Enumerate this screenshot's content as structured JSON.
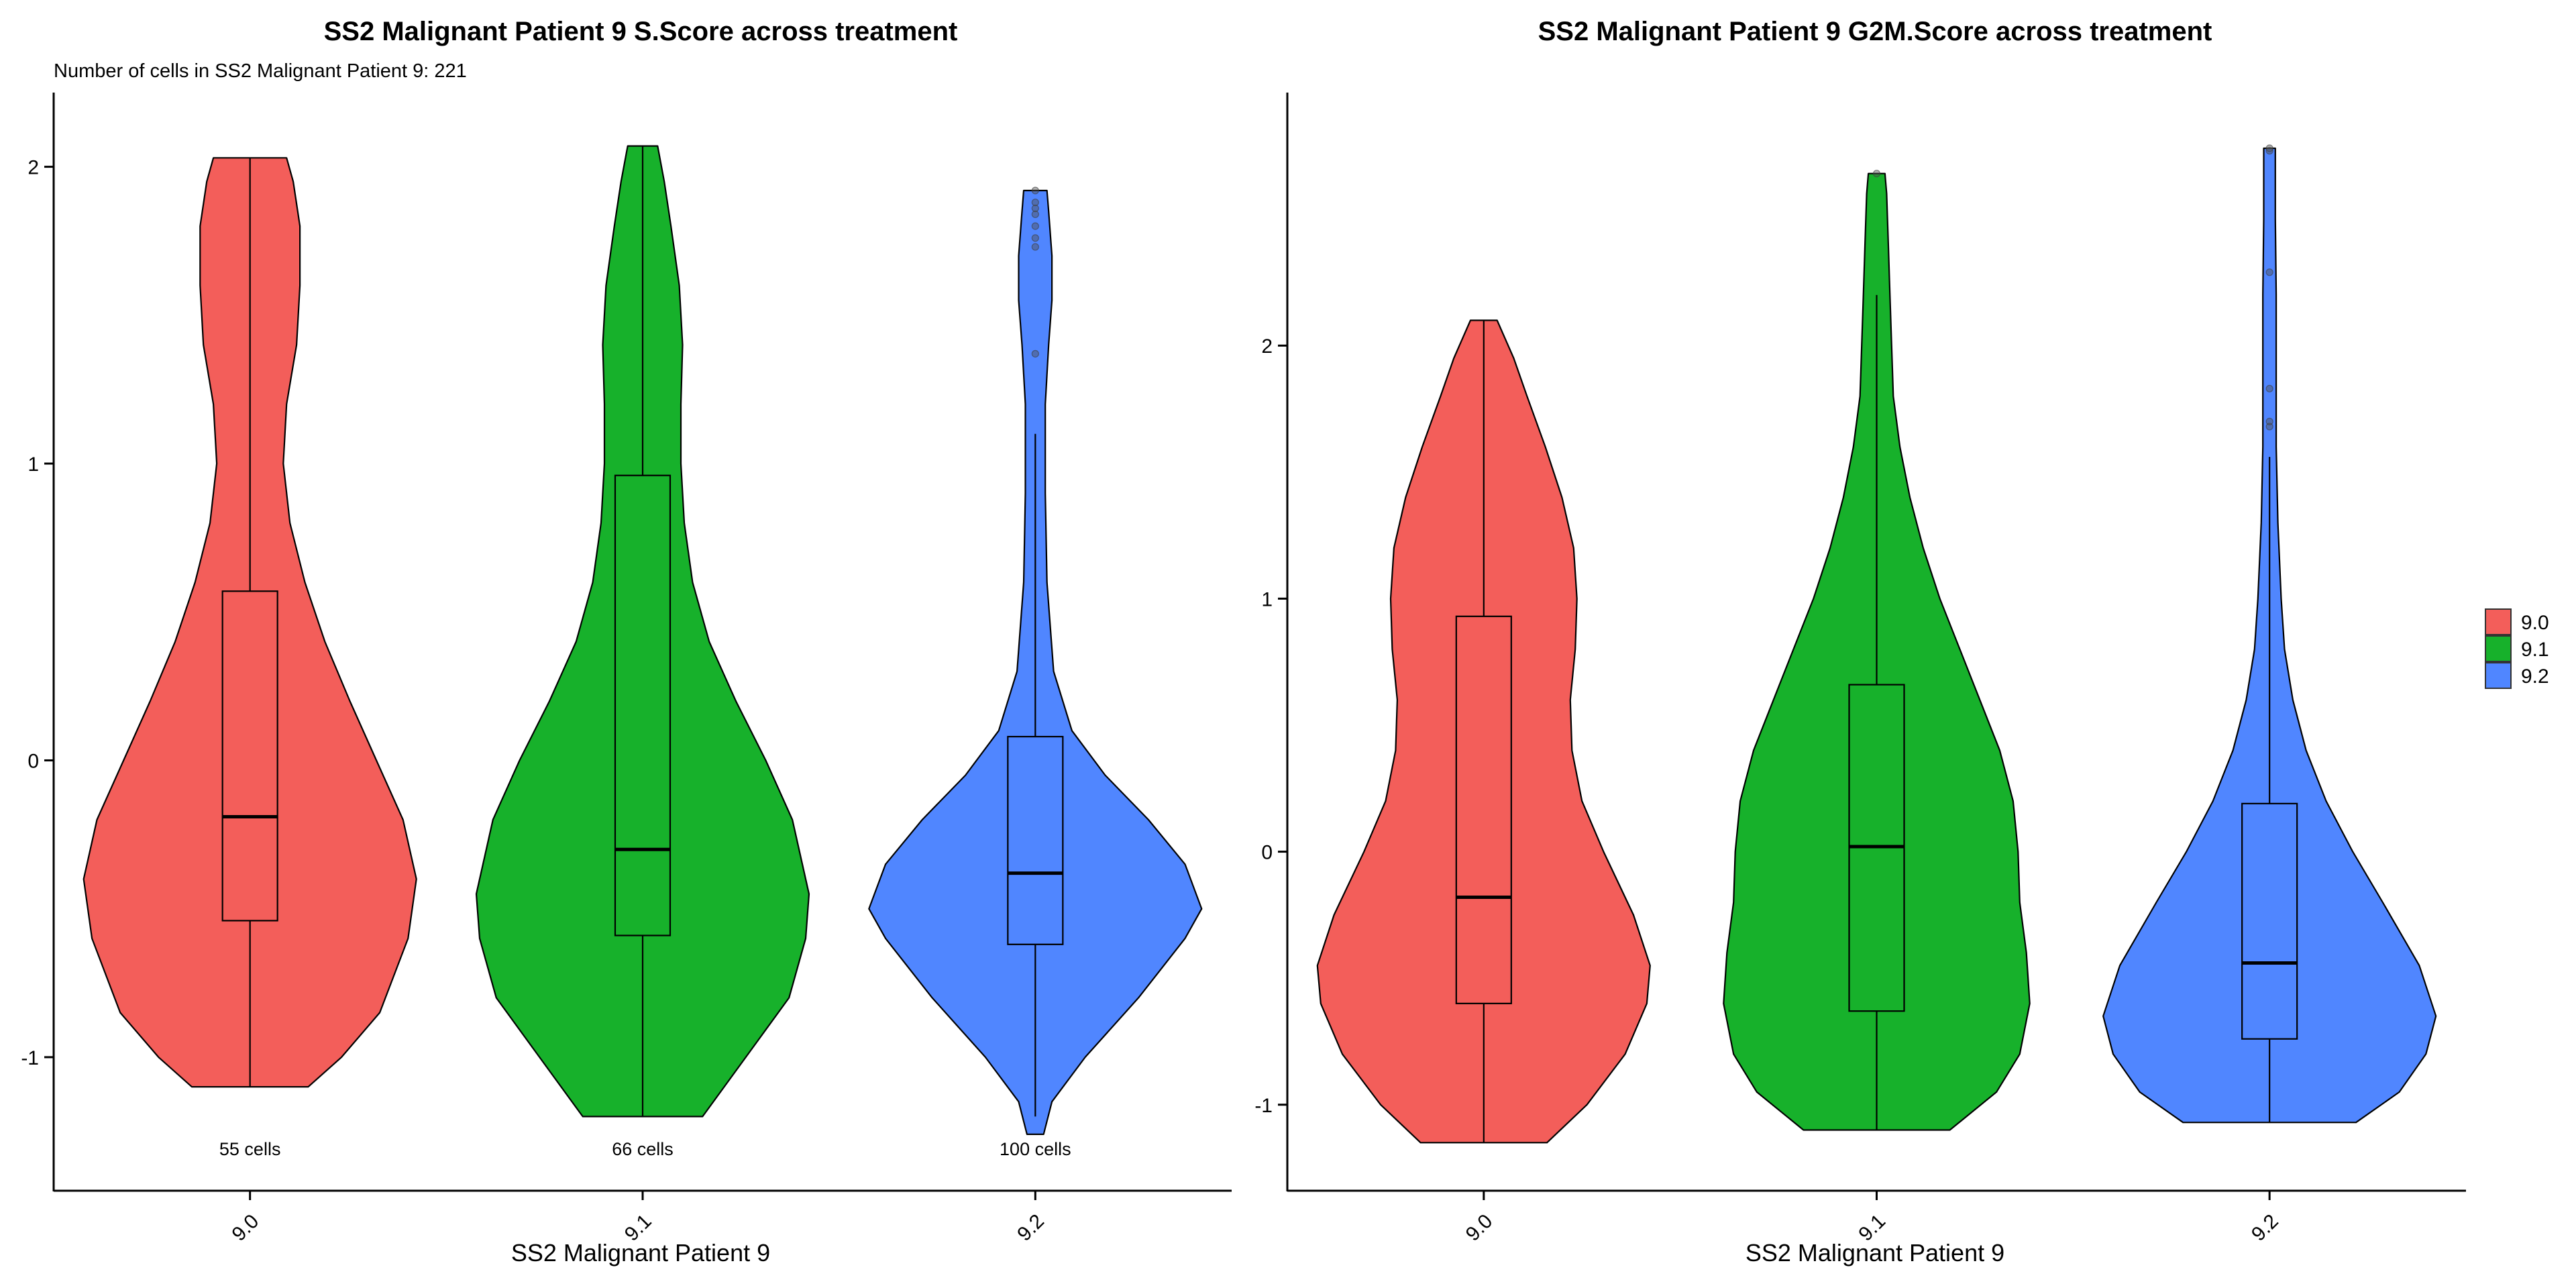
{
  "colors": {
    "9.0": "#F35E5A",
    "9.1": "#17B12B",
    "9.2": "#5086FF"
  },
  "legend": {
    "entries": [
      "9.0",
      "9.1",
      "9.2"
    ]
  },
  "chart_data": [
    {
      "type": "violin",
      "title": "SS2 Malignant Patient 9 S.Score across treatment",
      "subtitle": "Number of cells in SS2 Malignant Patient 9: 221",
      "xlabel": "SS2 Malignant Patient 9",
      "ylabel": "",
      "categories": [
        "9.0",
        "9.1",
        "9.2"
      ],
      "ylim": [
        -1.45,
        2.25
      ],
      "yticks": [
        -1,
        0,
        1,
        2
      ],
      "cell_labels": [
        "55 cells",
        "66 cells",
        "100 cells"
      ],
      "groups": [
        {
          "name": "9.0",
          "box": {
            "min": -1.1,
            "q1": -0.54,
            "median": -0.19,
            "q3": 0.57,
            "max": 2.03
          },
          "outliers": [],
          "profile": [
            [
              -1.1,
              0.35
            ],
            [
              -1.0,
              0.55
            ],
            [
              -0.85,
              0.78
            ],
            [
              -0.6,
              0.95
            ],
            [
              -0.4,
              1.0
            ],
            [
              -0.2,
              0.92
            ],
            [
              0.0,
              0.76
            ],
            [
              0.2,
              0.6
            ],
            [
              0.4,
              0.45
            ],
            [
              0.6,
              0.33
            ],
            [
              0.8,
              0.24
            ],
            [
              1.0,
              0.2
            ],
            [
              1.2,
              0.22
            ],
            [
              1.4,
              0.28
            ],
            [
              1.6,
              0.3
            ],
            [
              1.8,
              0.3
            ],
            [
              1.95,
              0.26
            ],
            [
              2.03,
              0.22
            ]
          ]
        },
        {
          "name": "9.1",
          "box": {
            "min": -1.2,
            "q1": -0.59,
            "median": -0.3,
            "q3": 0.96,
            "max": 2.07
          },
          "outliers": [],
          "profile": [
            [
              -1.2,
              0.36
            ],
            [
              -1.0,
              0.62
            ],
            [
              -0.8,
              0.88
            ],
            [
              -0.6,
              0.98
            ],
            [
              -0.45,
              1.0
            ],
            [
              -0.2,
              0.9
            ],
            [
              0.0,
              0.74
            ],
            [
              0.2,
              0.56
            ],
            [
              0.4,
              0.4
            ],
            [
              0.6,
              0.3
            ],
            [
              0.8,
              0.25
            ],
            [
              1.0,
              0.23
            ],
            [
              1.2,
              0.23
            ],
            [
              1.4,
              0.24
            ],
            [
              1.6,
              0.22
            ],
            [
              1.8,
              0.17
            ],
            [
              1.95,
              0.13
            ],
            [
              2.07,
              0.09
            ]
          ]
        },
        {
          "name": "9.2",
          "box": {
            "min": -1.2,
            "q1": -0.62,
            "median": -0.38,
            "q3": 0.08,
            "max": 1.1
          },
          "outliers": [
            1.37,
            1.73,
            1.76,
            1.8,
            1.84,
            1.86,
            1.88,
            1.92
          ],
          "profile": [
            [
              -1.26,
              0.05
            ],
            [
              -1.15,
              0.1
            ],
            [
              -1.0,
              0.3
            ],
            [
              -0.8,
              0.62
            ],
            [
              -0.6,
              0.9
            ],
            [
              -0.5,
              1.0
            ],
            [
              -0.35,
              0.9
            ],
            [
              -0.2,
              0.68
            ],
            [
              -0.05,
              0.42
            ],
            [
              0.1,
              0.22
            ],
            [
              0.3,
              0.11
            ],
            [
              0.6,
              0.07
            ],
            [
              0.9,
              0.06
            ],
            [
              1.2,
              0.06
            ],
            [
              1.4,
              0.08
            ],
            [
              1.55,
              0.1
            ],
            [
              1.7,
              0.1
            ],
            [
              1.85,
              0.08
            ],
            [
              1.92,
              0.07
            ]
          ]
        }
      ]
    },
    {
      "type": "violin",
      "title": "SS2 Malignant Patient 9 G2M.Score across treatment",
      "xlabel": "SS2 Malignant Patient 9",
      "ylabel": "",
      "categories": [
        "9.0",
        "9.1",
        "9.2"
      ],
      "ylim": [
        -1.34,
        3.0
      ],
      "yticks": [
        -1,
        0,
        1,
        2
      ],
      "groups": [
        {
          "name": "9.0",
          "box": {
            "min": -1.15,
            "q1": -0.6,
            "median": -0.18,
            "q3": 0.93,
            "max": 2.1
          },
          "outliers": [],
          "profile": [
            [
              -1.15,
              0.38
            ],
            [
              -1.0,
              0.62
            ],
            [
              -0.8,
              0.85
            ],
            [
              -0.6,
              0.98
            ],
            [
              -0.45,
              1.0
            ],
            [
              -0.25,
              0.9
            ],
            [
              0.0,
              0.72
            ],
            [
              0.2,
              0.59
            ],
            [
              0.4,
              0.53
            ],
            [
              0.6,
              0.52
            ],
            [
              0.8,
              0.55
            ],
            [
              1.0,
              0.56
            ],
            [
              1.2,
              0.54
            ],
            [
              1.4,
              0.47
            ],
            [
              1.6,
              0.37
            ],
            [
              1.8,
              0.26
            ],
            [
              1.95,
              0.18
            ],
            [
              2.1,
              0.08
            ]
          ]
        },
        {
          "name": "9.1",
          "box": {
            "min": -1.1,
            "q1": -0.63,
            "median": 0.02,
            "q3": 0.66,
            "max": 2.2
          },
          "outliers": [
            2.68
          ],
          "profile": [
            [
              -1.1,
              0.44
            ],
            [
              -0.95,
              0.72
            ],
            [
              -0.8,
              0.86
            ],
            [
              -0.6,
              0.92
            ],
            [
              -0.4,
              0.9
            ],
            [
              -0.2,
              0.86
            ],
            [
              0.0,
              0.85
            ],
            [
              0.2,
              0.82
            ],
            [
              0.4,
              0.74
            ],
            [
              0.6,
              0.62
            ],
            [
              0.8,
              0.5
            ],
            [
              1.0,
              0.38
            ],
            [
              1.2,
              0.28
            ],
            [
              1.4,
              0.2
            ],
            [
              1.6,
              0.14
            ],
            [
              1.8,
              0.1
            ],
            [
              2.0,
              0.09
            ],
            [
              2.2,
              0.08
            ],
            [
              2.4,
              0.07
            ],
            [
              2.6,
              0.06
            ],
            [
              2.68,
              0.05
            ]
          ]
        },
        {
          "name": "9.2",
          "box": {
            "min": -1.07,
            "q1": -0.74,
            "median": -0.44,
            "q3": 0.19,
            "max": 1.56
          },
          "outliers": [
            1.68,
            1.7,
            1.83,
            2.29,
            2.77,
            2.78
          ],
          "profile": [
            [
              -1.07,
              0.52
            ],
            [
              -0.95,
              0.78
            ],
            [
              -0.8,
              0.94
            ],
            [
              -0.65,
              1.0
            ],
            [
              -0.45,
              0.9
            ],
            [
              -0.2,
              0.68
            ],
            [
              0.0,
              0.5
            ],
            [
              0.2,
              0.34
            ],
            [
              0.4,
              0.22
            ],
            [
              0.6,
              0.14
            ],
            [
              0.8,
              0.09
            ],
            [
              1.0,
              0.07
            ],
            [
              1.3,
              0.05
            ],
            [
              1.6,
              0.04
            ],
            [
              1.9,
              0.04
            ],
            [
              2.2,
              0.04
            ],
            [
              2.5,
              0.035
            ],
            [
              2.78,
              0.035
            ]
          ]
        }
      ]
    }
  ]
}
